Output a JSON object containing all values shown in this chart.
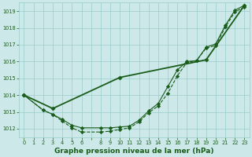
{
  "title": "Graphe pression niveau de la mer (hPa)",
  "background_color": "#cce8e8",
  "grid_color": "#99cccc",
  "line_color": "#1a5c1a",
  "xlim": [
    -0.5,
    23.5
  ],
  "ylim": [
    1011.5,
    1019.5
  ],
  "yticks": [
    1012,
    1013,
    1014,
    1015,
    1016,
    1017,
    1018,
    1019
  ],
  "xtick_labels": [
    "0",
    "1",
    "2",
    "3",
    "4",
    "5",
    "6",
    "",
    "8",
    "9",
    "10",
    "11",
    "12",
    "13",
    "14",
    "15",
    "16",
    "17",
    "18",
    "19",
    "20",
    "21",
    "22",
    "23"
  ],
  "xtick_positions": [
    0,
    1,
    2,
    3,
    4,
    5,
    6,
    7,
    8,
    9,
    10,
    11,
    12,
    13,
    14,
    15,
    16,
    17,
    18,
    19,
    20,
    21,
    22,
    23
  ],
  "series": [
    {
      "x": [
        0,
        2,
        3,
        4,
        5,
        6,
        8,
        9,
        10,
        11,
        12,
        13,
        14,
        15,
        16,
        17,
        18,
        19,
        20,
        21,
        22,
        23
      ],
      "y": [
        1014.0,
        1013.1,
        1012.85,
        1012.45,
        1012.05,
        1011.8,
        1011.8,
        1011.85,
        1011.95,
        1012.05,
        1012.4,
        1012.95,
        1013.35,
        1014.1,
        1015.15,
        1015.95,
        1016.05,
        1016.8,
        1016.95,
        1018.05,
        1018.95,
        1019.25
      ],
      "linestyle": "dashed",
      "linewidth": 0.8,
      "marker": "D",
      "markersize": 2.2
    },
    {
      "x": [
        0,
        2,
        3,
        4,
        5,
        6,
        8,
        9,
        10,
        11,
        12,
        13,
        14,
        15,
        16,
        17,
        18,
        19,
        20,
        21,
        22,
        23
      ],
      "y": [
        1014.0,
        1013.1,
        1012.85,
        1012.55,
        1012.2,
        1012.05,
        1012.05,
        1012.05,
        1012.1,
        1012.15,
        1012.5,
        1013.05,
        1013.5,
        1014.5,
        1015.5,
        1016.0,
        1016.05,
        1016.85,
        1017.05,
        1018.15,
        1019.05,
        1019.35
      ],
      "linestyle": "solid",
      "linewidth": 0.8,
      "marker": "D",
      "markersize": 2.2
    },
    {
      "x": [
        0,
        3,
        10,
        19,
        23
      ],
      "y": [
        1014.0,
        1013.2,
        1015.05,
        1016.1,
        1019.35
      ],
      "linestyle": "solid",
      "linewidth": 1.3,
      "marker": "D",
      "markersize": 2.5
    }
  ],
  "title_fontsize": 6.5,
  "tick_fontsize": 4.8
}
